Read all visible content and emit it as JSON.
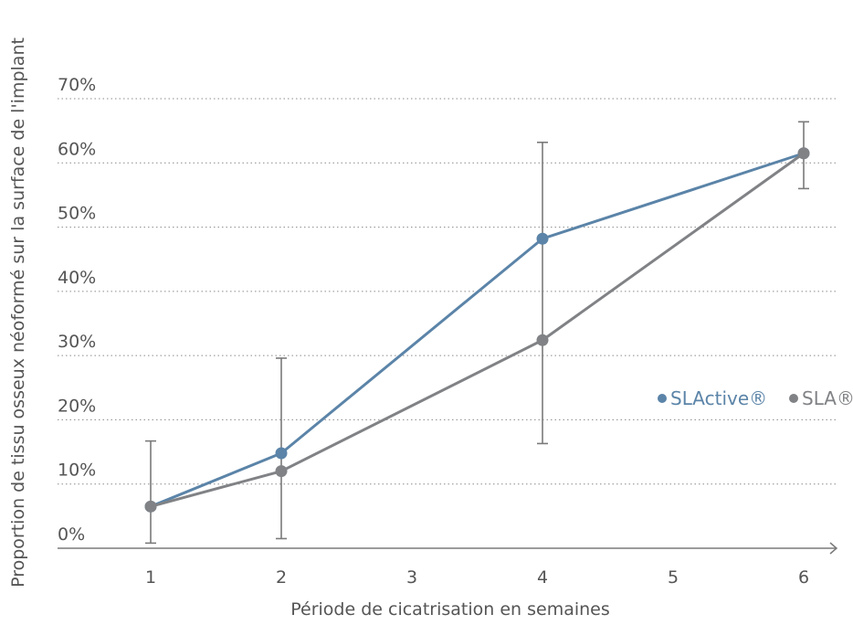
{
  "chart_data": {
    "type": "line",
    "title": "",
    "xlabel": "Période de cicatrisation en semaines",
    "ylabel": "Proportion de tissu osseux néoformé sur la surface de l'implant",
    "x": [
      1,
      2,
      3,
      4,
      5,
      6
    ],
    "x_tick_labels": [
      "1",
      "2",
      "3",
      "4",
      "5",
      "6"
    ],
    "y_ticks": [
      0,
      10,
      20,
      30,
      40,
      50,
      60,
      70
    ],
    "y_tick_labels": [
      "0%",
      "10%",
      "20%",
      "30%",
      "40%",
      "50%",
      "60%",
      "70%"
    ],
    "ylim": [
      0,
      70
    ],
    "xlim": [
      0.3,
      6.3
    ],
    "grid": "horizontal dotted",
    "legend_position": "right, near 20%",
    "series": [
      {
        "name": "SLActive®",
        "color": "#5b84a8",
        "points": [
          {
            "x": 1,
            "y": 6.5
          },
          {
            "x": 2,
            "y": 14.8
          },
          {
            "x": 4,
            "y": 48.2
          },
          {
            "x": 6,
            "y": 61.5
          }
        ]
      },
      {
        "name": "SLA®",
        "color": "#808285",
        "points": [
          {
            "x": 1,
            "y": 6.5
          },
          {
            "x": 2,
            "y": 12
          },
          {
            "x": 4,
            "y": 32.4
          },
          {
            "x": 6,
            "y": 61.5
          }
        ]
      }
    ],
    "error_bars": [
      {
        "x": 1,
        "low": 0.8,
        "high": 16.7
      },
      {
        "x": 2,
        "low": 1.5,
        "high": 29.6
      },
      {
        "x": 4,
        "low": 16.3,
        "high": 63.2
      },
      {
        "x": 6,
        "low": 56,
        "high": 66.4
      }
    ]
  }
}
